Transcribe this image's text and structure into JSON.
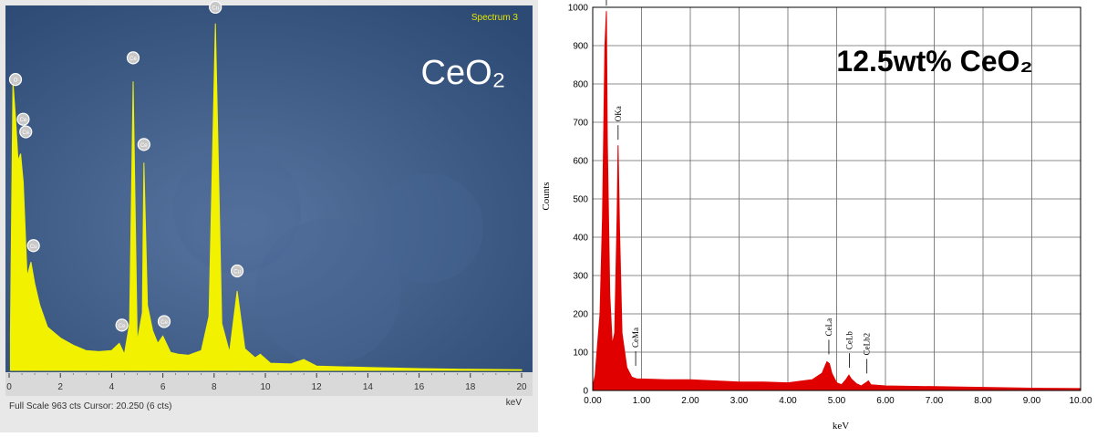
{
  "chart_data": [
    {
      "type": "line",
      "spectrum_label": "Spectrum 3",
      "overlay_title": "CeO₂",
      "footer": "Full Scale 963 cts Cursor: 20.250  (6 cts)",
      "xlabel": "keV",
      "xlim": [
        0,
        20
      ],
      "ylim": [
        0,
        1000
      ],
      "xticks": [
        "0",
        "2",
        "4",
        "6",
        "8",
        "10",
        "12",
        "14",
        "16",
        "18",
        "20"
      ],
      "series": [
        {
          "x": [
            0.05,
            0.15,
            0.25,
            0.35,
            0.45,
            0.55,
            0.7,
            0.85,
            1.0,
            1.2,
            1.5,
            2.0,
            2.5,
            3.0,
            3.5,
            4.0,
            4.3,
            4.5,
            4.7,
            4.84,
            5.0,
            5.2,
            5.26,
            5.4,
            5.6,
            5.8,
            6.0,
            6.1,
            6.3,
            6.6,
            7.0,
            7.5,
            7.8,
            8.05,
            8.3,
            8.6,
            8.9,
            9.2,
            9.6,
            9.8,
            10.2,
            11.0,
            11.5,
            12.0,
            14.0,
            16.0,
            18.0,
            20.0
          ],
          "y": [
            100,
            800,
            700,
            580,
            600,
            520,
            260,
            300,
            240,
            180,
            120,
            90,
            70,
            55,
            52,
            55,
            75,
            45,
            130,
            800,
            80,
            160,
            575,
            180,
            110,
            75,
            95,
            80,
            50,
            45,
            42,
            55,
            150,
            960,
            130,
            50,
            220,
            60,
            35,
            45,
            20,
            18,
            30,
            12,
            8,
            5,
            3,
            2
          ]
        }
      ],
      "peaks": [
        {
          "label": "O",
          "x": 0.25,
          "y": 780
        },
        {
          "label": "Ce",
          "x": 0.55,
          "y": 670
        },
        {
          "label": "Ce",
          "x": 0.65,
          "y": 635
        },
        {
          "label": "Cu",
          "x": 0.95,
          "y": 320
        },
        {
          "label": "Ce",
          "x": 4.4,
          "y": 100
        },
        {
          "label": "Ce",
          "x": 4.84,
          "y": 840
        },
        {
          "label": "Ce",
          "x": 5.26,
          "y": 600
        },
        {
          "label": "Ce",
          "x": 6.05,
          "y": 110
        },
        {
          "label": "Cu",
          "x": 8.05,
          "y": 980
        },
        {
          "label": "Cu",
          "x": 8.9,
          "y": 250
        }
      ],
      "colors": {
        "background": "#3d5c86",
        "plot": "#f2f200",
        "axis_band": "#d9d9d9",
        "label": "#ffffff"
      }
    },
    {
      "type": "line",
      "overlay_title": "12.5wt% CeO₂",
      "xlabel": "keV",
      "ylabel": "Counts",
      "xlim": [
        0,
        10
      ],
      "ylim": [
        0,
        1000
      ],
      "xticks": [
        "0.00",
        "1.00",
        "2.00",
        "3.00",
        "4.00",
        "5.00",
        "6.00",
        "7.00",
        "8.00",
        "9.00",
        "10.00"
      ],
      "yticks": [
        "0",
        "100",
        "200",
        "300",
        "400",
        "500",
        "600",
        "700",
        "800",
        "900",
        "1000"
      ],
      "grid": true,
      "series": [
        {
          "x": [
            0.0,
            0.05,
            0.1,
            0.15,
            0.2,
            0.25,
            0.28,
            0.3,
            0.35,
            0.4,
            0.45,
            0.5,
            0.52,
            0.55,
            0.6,
            0.7,
            0.8,
            0.9,
            1.0,
            1.5,
            2.0,
            2.5,
            3.0,
            3.5,
            4.0,
            4.5,
            4.7,
            4.8,
            4.85,
            4.9,
            5.0,
            5.1,
            5.2,
            5.25,
            5.3,
            5.4,
            5.5,
            5.6,
            5.65,
            5.7,
            6.0,
            7.0,
            8.0,
            9.0,
            10.0
          ],
          "y": [
            10,
            40,
            120,
            200,
            450,
            900,
            990,
            650,
            250,
            120,
            150,
            460,
            640,
            420,
            150,
            60,
            35,
            30,
            30,
            28,
            28,
            25,
            22,
            22,
            20,
            28,
            45,
            75,
            70,
            45,
            20,
            15,
            30,
            40,
            30,
            18,
            12,
            20,
            25,
            15,
            12,
            10,
            8,
            6,
            5
          ]
        }
      ],
      "peak_labels": [
        {
          "label": "OKa",
          "x": 0.28,
          "y": 990
        },
        {
          "label": "OKa",
          "x": 0.52,
          "y": 640
        },
        {
          "label": "CeMa",
          "x": 0.88,
          "y": 50
        },
        {
          "label": "CeLa",
          "x": 4.84,
          "y": 80
        },
        {
          "label": "CeLb",
          "x": 5.26,
          "y": 45
        },
        {
          "label": "CeLb2",
          "x": 5.62,
          "y": 30
        }
      ],
      "colors": {
        "plot": "#e00000",
        "grid": "#666666",
        "label": "#000000"
      }
    }
  ]
}
